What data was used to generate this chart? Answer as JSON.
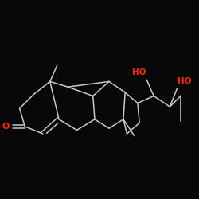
{
  "bg_color": "#080808",
  "bond_color": "#c8c8c8",
  "heteroatom_color": "#ff2200",
  "bond_lw": 1.1,
  "fig_size": [
    2.5,
    2.5
  ],
  "dpi": 100,
  "xlim": [
    -0.5,
    10.5
  ],
  "ylim": [
    -0.5,
    10.5
  ],
  "label_fontsize": 7.5
}
